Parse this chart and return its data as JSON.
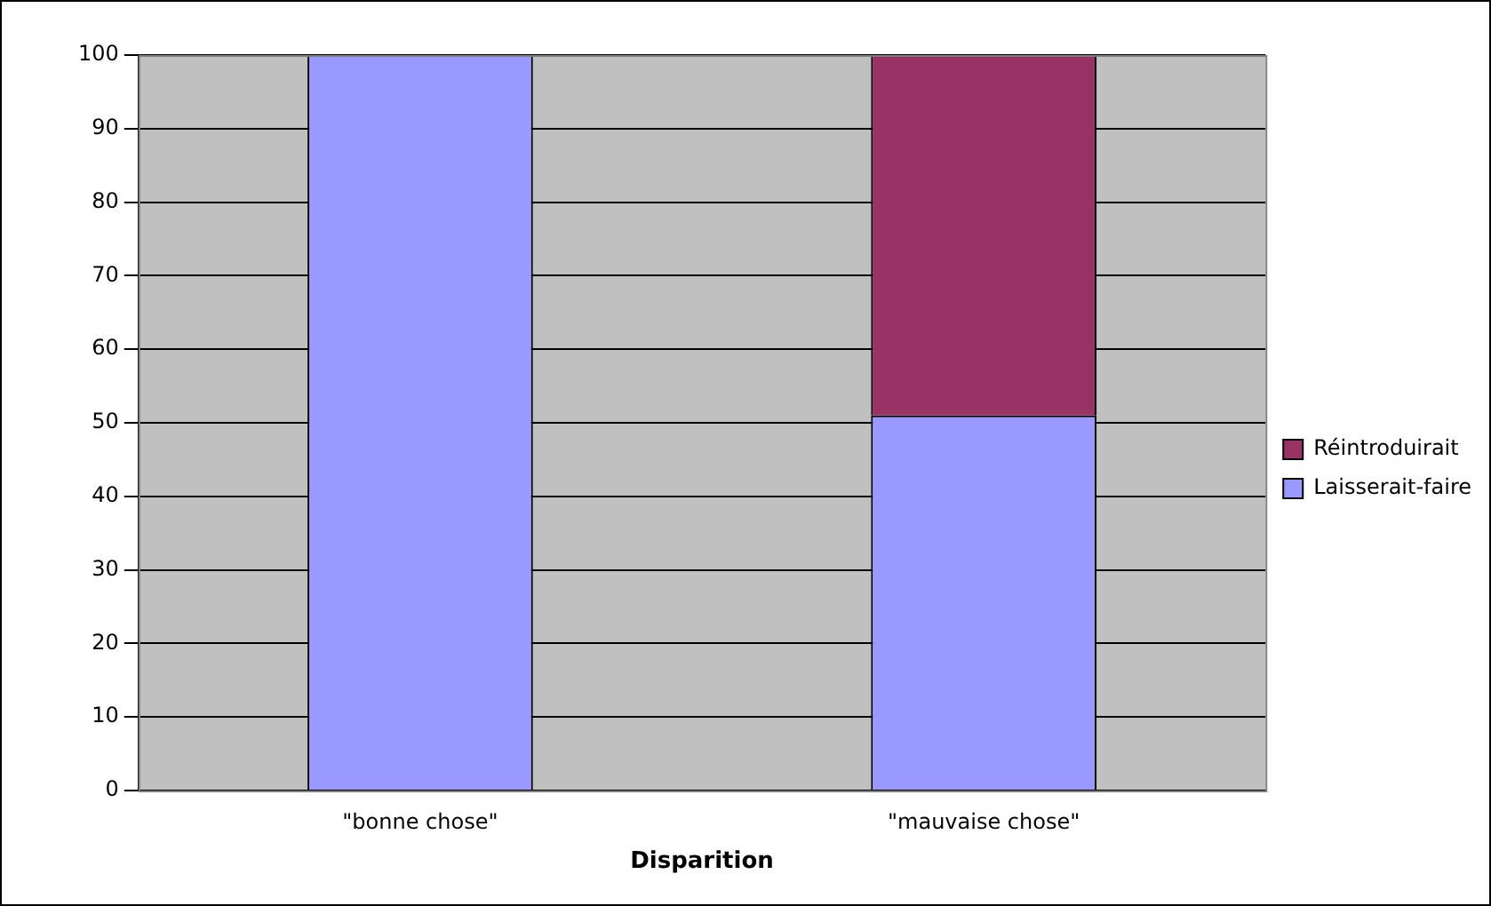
{
  "chart_data": {
    "type": "bar",
    "xlabel": "Disparition",
    "categories": [
      "\"bonne chose\"",
      "\"mauvaise chose\""
    ],
    "stacked": true,
    "series": [
      {
        "name": "Laisserait-faire",
        "color": "#9999ff",
        "values": [
          100,
          51
        ]
      },
      {
        "name": "Réintroduirait",
        "color": "#993366",
        "values": [
          0,
          49
        ]
      }
    ],
    "ylim": [
      0,
      100
    ],
    "yticks": [
      0,
      10,
      20,
      30,
      40,
      50,
      60,
      70,
      80,
      90,
      100
    ],
    "grid": "y",
    "legend": "right"
  }
}
